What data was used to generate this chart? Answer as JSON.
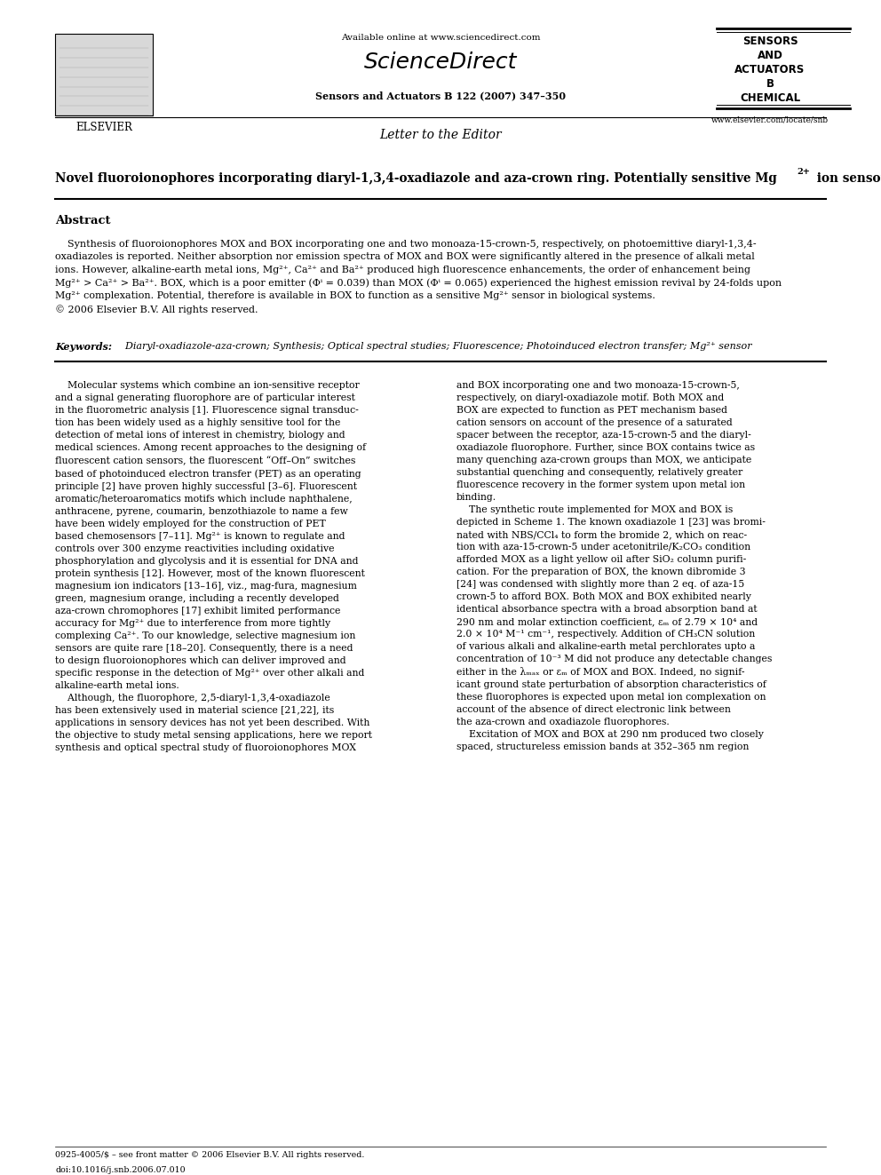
{
  "page_width": 9.92,
  "page_height": 13.23,
  "bg_color": "#ffffff",
  "available_online": "Available online at www.sciencedirect.com",
  "sciencedirect_text": "ScienceDirect",
  "journal": "Sensors and Actuators B 122 (2007) 347–350",
  "elsevier_text": "ELSEVIER",
  "sensors_line1": "SENSORS",
  "sensors_line2": "AND",
  "sensors_line3": "ACTUATORS",
  "sensors_line4": "B",
  "sensors_line5": "CHEMICAL",
  "website": "www.elsevier.com/locate/snb",
  "letter_to_editor": "Letter to the Editor",
  "article_title_main": "Novel fluoroionophores incorporating diaryl-1,3,4-oxadiazole and aza-crown ring. Potentially sensitive Mg",
  "article_title_sup": "2+",
  "article_title_end": " ion sensor",
  "abstract_header": "Abstract",
  "abstract_body": "    Synthesis of fluoroionophores MOX and BOX incorporating one and two monoaza-15-crown-5, respectively, on photoemittive diaryl-1,3,4-\noxadiazoles is reported. Neither absorption nor emission spectra of MOX and BOX were significantly altered in the presence of alkali metal\nions. However, alkaline-earth metal ions, Mg²⁺, Ca²⁺ and Ba²⁺ produced high fluorescence enhancements, the order of enhancement being\nMg²⁺ > Ca²⁺ > Ba²⁺. BOX, which is a poor emitter (Φⁱ = 0.039) than MOX (Φⁱ = 0.065) experienced the highest emission revival by 24-folds upon\nMg²⁺ complexation. Potential, therefore is available in BOX to function as a sensitive Mg²⁺ sensor in biological systems.\n© 2006 Elsevier B.V. All rights reserved.",
  "keywords_label": "Keywords:",
  "keywords_body": "  Diaryl-oxadiazole-aza-crown; Synthesis; Optical spectral studies; Fluorescence; Photoinduced electron transfer; Mg²⁺ sensor",
  "col1_lines": [
    "    Molecular systems which combine an ion-sensitive receptor",
    "and a signal generating fluorophore are of particular interest",
    "in the fluorometric analysis [1]. Fluorescence signal transduc-",
    "tion has been widely used as a highly sensitive tool for the",
    "detection of metal ions of interest in chemistry, biology and",
    "medical sciences. Among recent approaches to the designing of",
    "fluorescent cation sensors, the fluorescent “Off–On” switches",
    "based of photoinduced electron transfer (PET) as an operating",
    "principle [2] have proven highly successful [3–6]. Fluorescent",
    "aromatic/heteroaromatics motifs which include naphthalene,",
    "anthracene, pyrene, coumarin, benzothiazole to name a few",
    "have been widely employed for the construction of PET",
    "based chemosensors [7–11]. Mg²⁺ is known to regulate and",
    "controls over 300 enzyme reactivities including oxidative",
    "phosphorylation and glycolysis and it is essential for DNA and",
    "protein synthesis [12]. However, most of the known fluorescent",
    "magnesium ion indicators [13–16], viz., mag-fura, magnesium",
    "green, magnesium orange, including a recently developed",
    "aza-crown chromophores [17] exhibit limited performance",
    "accuracy for Mg²⁺ due to interference from more tightly",
    "complexing Ca²⁺. To our knowledge, selective magnesium ion",
    "sensors are quite rare [18–20]. Consequently, there is a need",
    "to design fluoroionophores which can deliver improved and",
    "specific response in the detection of Mg²⁺ over other alkali and",
    "alkaline-earth metal ions.",
    "    Although, the fluorophore, 2,5-diaryl-1,3,4-oxadiazole",
    "has been extensively used in material science [21,22], its",
    "applications in sensory devices has not yet been described. With",
    "the objective to study metal sensing applications, here we report",
    "synthesis and optical spectral study of fluoroionophores MOX"
  ],
  "col2_lines": [
    "and BOX incorporating one and two monoaza-15-crown-5,",
    "respectively, on diaryl-oxadiazole motif. Both MOX and",
    "BOX are expected to function as PET mechanism based",
    "cation sensors on account of the presence of a saturated",
    "spacer between the receptor, aza-15-crown-5 and the diaryl-",
    "oxadiazole fluorophore. Further, since BOX contains twice as",
    "many quenching aza-crown groups than MOX, we anticipate",
    "substantial quenching and consequently, relatively greater",
    "fluorescence recovery in the former system upon metal ion",
    "binding.",
    "    The synthetic route implemented for MOX and BOX is",
    "depicted in Scheme 1. The known oxadiazole 1 [23] was bromi-",
    "nated with NBS/CCl₄ to form the bromide 2, which on reac-",
    "tion with aza-15-crown-5 under acetonitrile/K₂CO₃ condition",
    "afforded MOX as a light yellow oil after SiO₂ column purifi-",
    "cation. For the preparation of BOX, the known dibromide 3",
    "[24] was condensed with slightly more than 2 eq. of aza-15",
    "crown-5 to afford BOX. Both MOX and BOX exhibited nearly",
    "identical absorbance spectra with a broad absorption band at",
    "290 nm and molar extinction coefficient, εₘ of 2.79 × 10⁴ and",
    "2.0 × 10⁴ M⁻¹ cm⁻¹, respectively. Addition of CH₃CN solution",
    "of various alkali and alkaline-earth metal perchlorates upto a",
    "concentration of 10⁻³ M did not produce any detectable changes",
    "either in the λₘₐₓ or εₘ of MOX and BOX. Indeed, no signif-",
    "icant ground state perturbation of absorption characteristics of",
    "these fluorophores is expected upon metal ion complexation on",
    "account of the absence of direct electronic link between",
    "the aza-crown and oxadiazole fluorophores.",
    "    Excitation of MOX and BOX at 290 nm produced two closely",
    "spaced, structureless emission bands at 352–365 nm region"
  ],
  "footer_line1": "0925-4005/$ – see front matter © 2006 Elsevier B.V. All rights reserved.",
  "footer_line2": "doi:10.1016/j.snb.2006.07.010"
}
